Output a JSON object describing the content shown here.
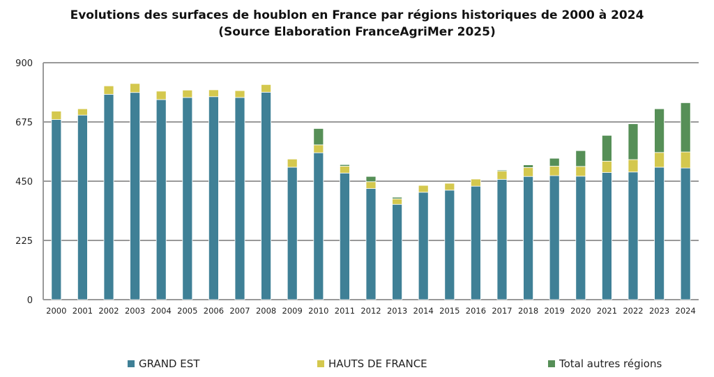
{
  "chart_data": {
    "type": "bar",
    "stacked": true,
    "title": "Evolutions des surfaces de houblon en France par régions historiques de 2000 à 2024",
    "subtitle": "(Source Elaboration FranceAgriMer 2025)",
    "xlabel": "",
    "ylabel": "",
    "ylim": [
      0,
      900
    ],
    "yticks": [
      0,
      225,
      450,
      675,
      900
    ],
    "grid": true,
    "legend_position": "bottom",
    "categories": [
      "2000",
      "2001",
      "2002",
      "2003",
      "2004",
      "2005",
      "2006",
      "2007",
      "2008",
      "2009",
      "2010",
      "2011",
      "2012",
      "2013",
      "2014",
      "2015",
      "2016",
      "2017",
      "2018",
      "2019",
      "2020",
      "2021",
      "2022",
      "2023",
      "2024"
    ],
    "series": [
      {
        "name": "GRAND EST",
        "color": "#3f8096",
        "values": [
          684,
          701,
          780,
          787,
          760,
          768,
          771,
          768,
          788,
          503,
          558,
          481,
          422,
          362,
          408,
          416,
          431,
          457,
          468,
          471,
          469,
          483,
          485,
          503,
          500
        ]
      },
      {
        "name": "HAUTS DE FRANCE",
        "color": "#d4c84e",
        "values": [
          32,
          24,
          32,
          34,
          32,
          28,
          26,
          26,
          29,
          31,
          30,
          26,
          26,
          21,
          26,
          26,
          27,
          31,
          34,
          36,
          37,
          43,
          47,
          56,
          61
        ]
      },
      {
        "name": "Total autres régions",
        "color": "#568f57",
        "values": [
          0,
          0,
          0,
          0,
          0,
          0,
          0,
          0,
          0,
          0,
          62,
          6,
          20,
          6,
          0,
          0,
          0,
          4,
          10,
          30,
          60,
          98,
          136,
          166,
          187
        ]
      }
    ]
  }
}
